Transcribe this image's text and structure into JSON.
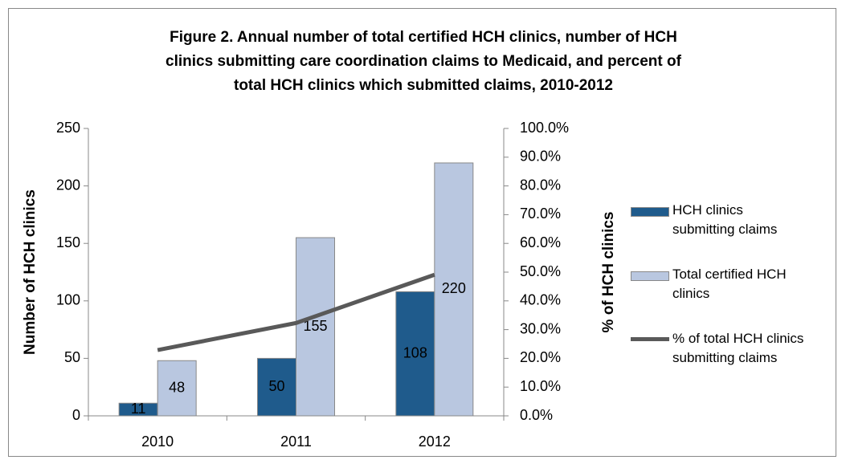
{
  "chart_data": {
    "type": "bar",
    "title": [
      "Figure 2. Annual number of total certified HCH clinics, number of HCH",
      "clinics submitting care coordination claims to Medicaid, and percent of",
      "total HCH clinics which submitted claims, 2010-2012"
    ],
    "ylabel": "Number of HCH clinics",
    "y2label": "% of HCH clinics",
    "categories": [
      "2010",
      "2011",
      "2012"
    ],
    "series": [
      {
        "name": "HCH clinics submitting claims",
        "type": "bar",
        "color": "#1f5b8c",
        "values": [
          11,
          50,
          108
        ]
      },
      {
        "name": "Total certified HCH clinics",
        "type": "bar",
        "color": "#b9c7e0",
        "values": [
          48,
          155,
          220
        ]
      },
      {
        "name": "% of total HCH clinics submitting claims",
        "type": "line",
        "axis": "y2",
        "color": "#595959",
        "values": [
          22.9,
          32.3,
          49.1
        ]
      }
    ],
    "ylim": [
      0,
      250
    ],
    "yticks": [
      0,
      50,
      100,
      150,
      200,
      250
    ],
    "y2lim": [
      0,
      100
    ],
    "y2ticks": [
      {
        "value": 0,
        "label": "0.0%"
      },
      {
        "value": 10,
        "label": "10.0%"
      },
      {
        "value": 20,
        "label": "20.0%"
      },
      {
        "value": 30,
        "label": "30.0%"
      },
      {
        "value": 40,
        "label": "40.0%"
      },
      {
        "value": 50,
        "label": "50.0%"
      },
      {
        "value": 60,
        "label": "60.0%"
      },
      {
        "value": 70,
        "label": "70.0%"
      },
      {
        "value": 80,
        "label": "80.0%"
      },
      {
        "value": 90,
        "label": "90.0%"
      },
      {
        "value": 100,
        "label": "100.0%"
      }
    ],
    "grid": false,
    "legend": "right"
  }
}
